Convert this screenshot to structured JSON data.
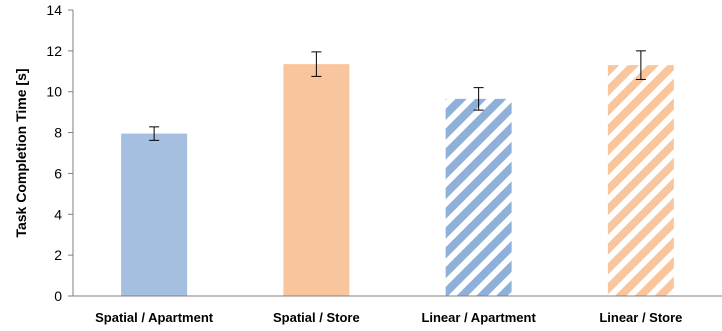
{
  "chart_data": {
    "type": "bar",
    "title": "",
    "xlabel": "",
    "ylabel": "Task Completion Time [s]",
    "ylim": [
      0,
      14
    ],
    "yticks": [
      0,
      2,
      4,
      6,
      8,
      10,
      12,
      14
    ],
    "grid": false,
    "categories": [
      "Spatial / Apartment",
      "Spatial / Store",
      "Linear / Apartment",
      "Linear / Store"
    ],
    "values": [
      7.95,
      11.35,
      9.65,
      11.3
    ],
    "error": [
      0.33,
      0.6,
      0.55,
      0.7
    ],
    "colors": [
      "#a4bfe0",
      "#f9c59c",
      "#8fb0d8",
      "#f9c59c"
    ],
    "fill_pattern": [
      "solid",
      "solid",
      "diagonal-stripes",
      "diagonal-stripes"
    ]
  }
}
